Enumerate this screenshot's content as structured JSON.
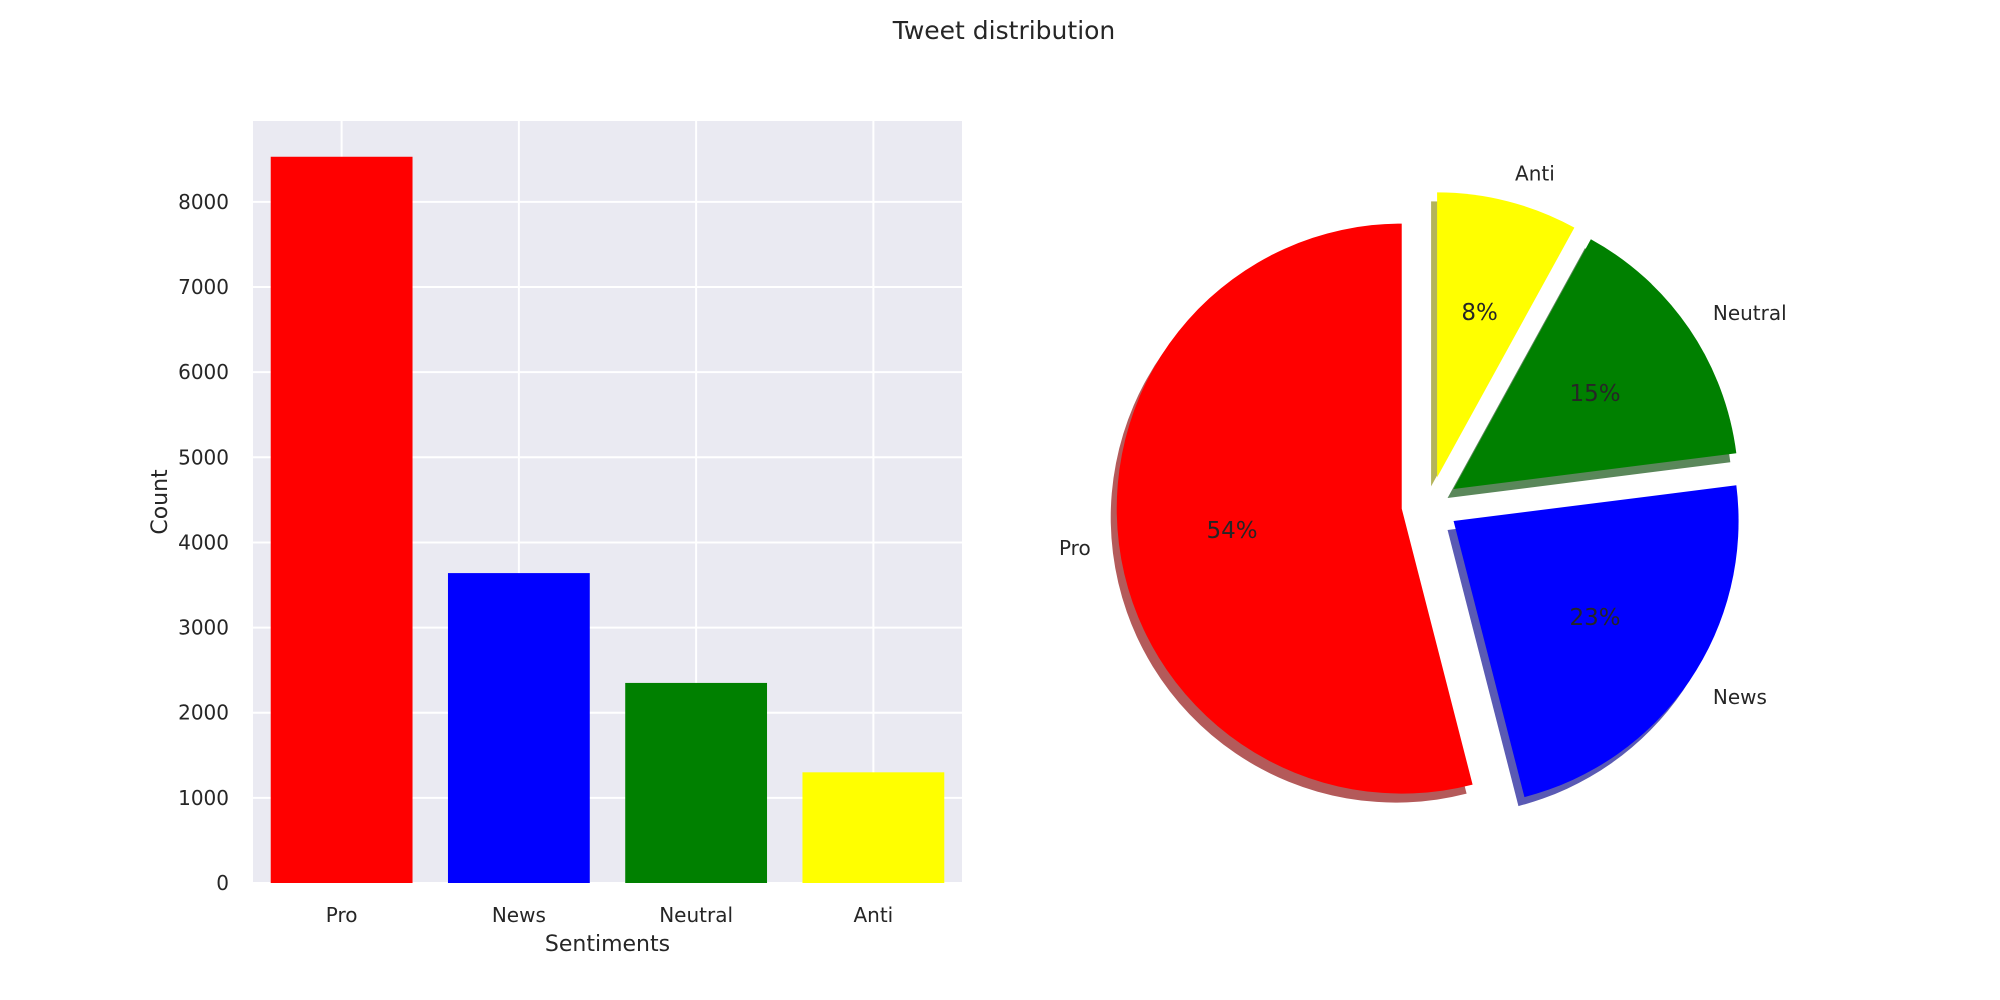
{
  "figure": {
    "title": "Tweet distribution"
  },
  "chart_data": [
    {
      "type": "bar",
      "categories": [
        "Pro",
        "News",
        "Neutral",
        "Anti"
      ],
      "values": [
        8530,
        3640,
        2350,
        1300
      ],
      "colors": [
        "#ff0000",
        "#0000ff",
        "#008000",
        "#ffff00"
      ],
      "xlabel": "Sentiments",
      "ylabel": "Count",
      "ylim": [
        0,
        8950
      ],
      "yticks": [
        "0",
        "1000",
        "2000",
        "3000",
        "4000",
        "5000",
        "6000",
        "7000",
        "8000"
      ],
      "grid": true,
      "background": "#eaeaf2"
    },
    {
      "type": "pie",
      "labels": [
        "Pro",
        "News",
        "Neutral",
        "Anti"
      ],
      "values": [
        54,
        23,
        15,
        8
      ],
      "pct_labels": [
        "54%",
        "23%",
        "15%",
        "8%"
      ],
      "colors": [
        "#ff0000",
        "#0000ff",
        "#008000",
        "#ffff00"
      ],
      "exploded": [
        "Pro",
        "News",
        "Neutral",
        "Anti"
      ],
      "shadow": true,
      "start_angle": 90,
      "direction": "counterclockwise"
    }
  ]
}
